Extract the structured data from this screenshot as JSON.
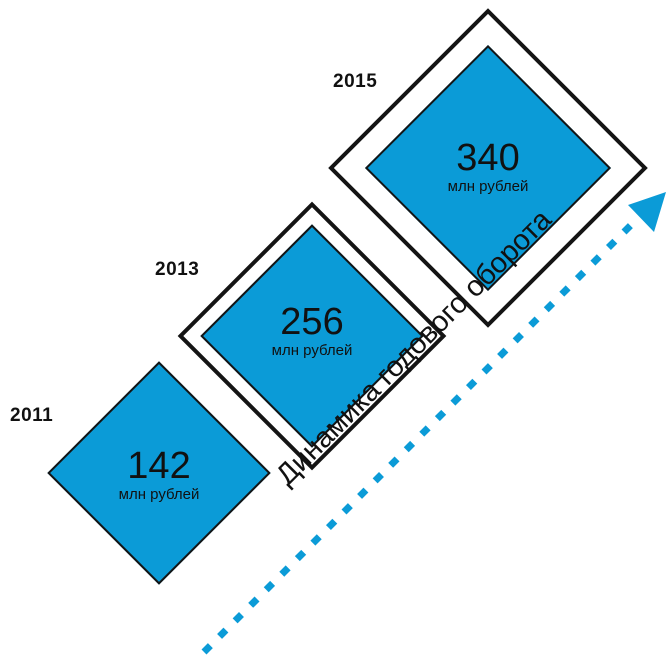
{
  "colors": {
    "fill": "#0b9bd7",
    "outline": "#141414",
    "arrow": "#0b9bd7"
  },
  "milestones": [
    {
      "year": "2011",
      "value": "142",
      "unit": "млн рублей"
    },
    {
      "year": "2013",
      "value": "256",
      "unit": "млн рублей"
    },
    {
      "year": "2015",
      "value": "340",
      "unit": "млн рублей"
    }
  ],
  "arrow": {
    "label": "Динамика годового оборота"
  }
}
